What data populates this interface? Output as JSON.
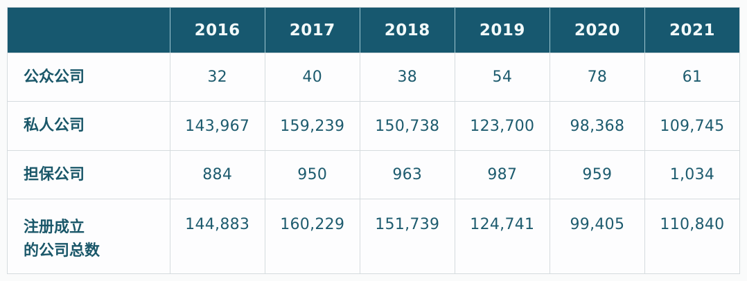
{
  "table": {
    "columns": [
      "2016",
      "2017",
      "2018",
      "2019",
      "2020",
      "2021"
    ],
    "rows": [
      {
        "label": "公众公司",
        "values": [
          "32",
          "40",
          "38",
          "54",
          "78",
          "61"
        ]
      },
      {
        "label": "私人公司",
        "values": [
          "143,967",
          "159,239",
          "150,738",
          "123,700",
          "98,368",
          "109,745"
        ]
      },
      {
        "label": "担保公司",
        "values": [
          "884",
          "950",
          "963",
          "987",
          "959",
          "1,034"
        ]
      },
      {
        "label": "注册成立\n的公司总数",
        "values": [
          "144,883",
          "160,229",
          "151,739",
          "124,741",
          "99,405",
          "110,840"
        ]
      }
    ]
  },
  "chart_data": {
    "type": "table",
    "title": "",
    "categories": [
      "2016",
      "2017",
      "2018",
      "2019",
      "2020",
      "2021"
    ],
    "series": [
      {
        "name": "公众公司",
        "values": [
          32,
          40,
          38,
          54,
          78,
          61
        ]
      },
      {
        "name": "私人公司",
        "values": [
          143967,
          159239,
          150738,
          123700,
          98368,
          109745
        ]
      },
      {
        "name": "担保公司",
        "values": [
          884,
          950,
          963,
          987,
          959,
          1034
        ]
      },
      {
        "name": "注册成立的公司总数",
        "values": [
          144883,
          160229,
          151739,
          124741,
          99405,
          110840
        ]
      }
    ]
  },
  "colors": {
    "header_bg": "#17586F",
    "header_text": "#F2FAFA",
    "cell_text": "#1D5B6E",
    "border": "#D5DBDE",
    "cell_bg": "#FDFDFE",
    "page_bg": "#FAFBFB"
  }
}
